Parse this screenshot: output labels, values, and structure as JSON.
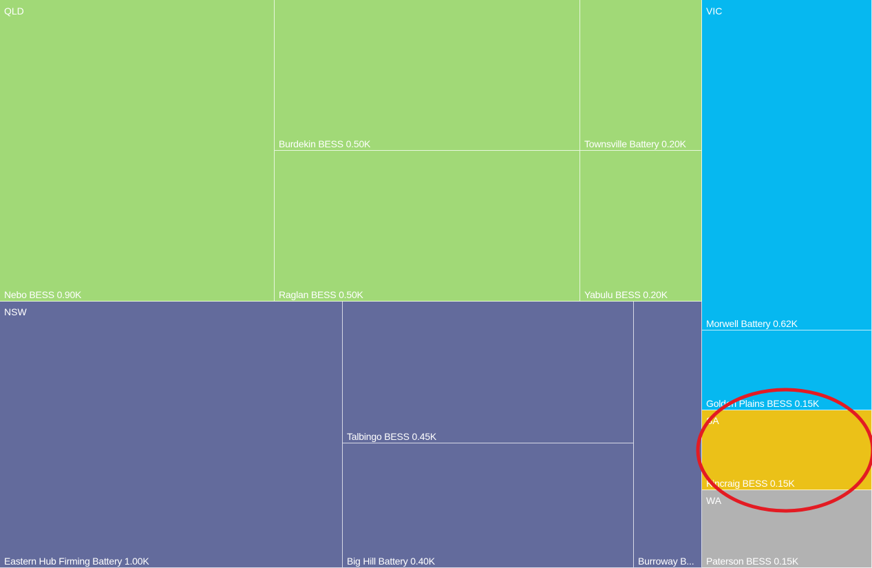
{
  "chart_data": {
    "type": "treemap",
    "groups": [
      {
        "name": "QLD",
        "color": "#a1d977",
        "items": [
          {
            "name": "Nebo BESS",
            "value": 0.9,
            "label": "Nebo BESS 0.90K"
          },
          {
            "name": "Burdekin BESS",
            "value": 0.5,
            "label": "Burdekin BESS 0.50K"
          },
          {
            "name": "Raglan BESS",
            "value": 0.5,
            "label": "Raglan BESS 0.50K"
          },
          {
            "name": "Townsville Battery",
            "value": 0.2,
            "label": "Townsville Battery 0.20K"
          },
          {
            "name": "Yabulu BESS",
            "value": 0.2,
            "label": "Yabulu BESS 0.20K"
          }
        ]
      },
      {
        "name": "NSW",
        "color": "#636b9c",
        "items": [
          {
            "name": "Eastern Hub Firming Battery",
            "value": 1.0,
            "label": "Eastern Hub Firming Battery 1.00K"
          },
          {
            "name": "Talbingo BESS",
            "value": 0.45,
            "label": "Talbingo BESS 0.45K"
          },
          {
            "name": "Big Hill Battery",
            "value": 0.4,
            "label": "Big Hill Battery 0.40K"
          },
          {
            "name": "Burroway B...",
            "value": 0.2,
            "label": "Burroway B..."
          }
        ]
      },
      {
        "name": "VIC",
        "color": "#06b8f0",
        "items": [
          {
            "name": "Morwell Battery",
            "value": 0.62,
            "label": "Morwell Battery 0.62K"
          },
          {
            "name": "Golden Plains BESS",
            "value": 0.15,
            "label": "Golden Plains BESS 0.15K"
          }
        ]
      },
      {
        "name": "SA",
        "color": "#ebc118",
        "items": [
          {
            "name": "Kincraig BESS",
            "value": 0.15,
            "label": "Kincraig BESS 0.15K"
          }
        ]
      },
      {
        "name": "WA",
        "color": "#b2b2b2",
        "items": [
          {
            "name": "Paterson BESS",
            "value": 0.15,
            "label": "Paterson BESS 0.15K"
          }
        ]
      }
    ],
    "annotation": {
      "type": "ellipse",
      "color": "#e31b23",
      "target": "SA"
    }
  }
}
